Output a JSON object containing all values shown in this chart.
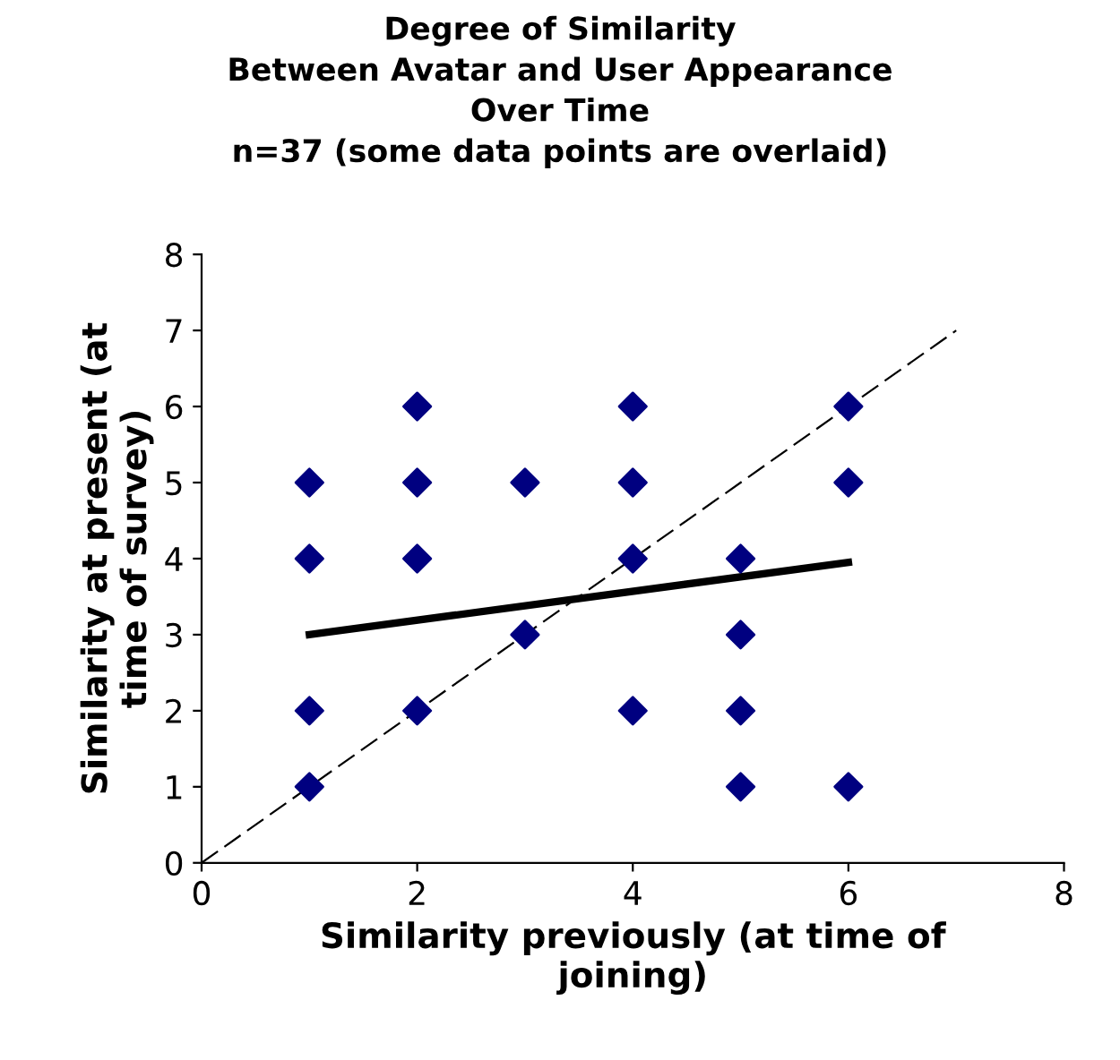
{
  "chart_data": {
    "type": "scatter",
    "title": "Degree of Similarity\nBetween Avatar and User Appearance\nOver Time\nn=37 (some data points are overlaid)",
    "xlabel": "Similarity previously (at time of\njoining)",
    "ylabel": "Similarity at present (at\ntime of survey)",
    "series": [
      {
        "color": "#000080",
        "marker": "diamond",
        "x": [
          1,
          1,
          1,
          1,
          2,
          2,
          2,
          2,
          3,
          3,
          4,
          4,
          4,
          4,
          5,
          5,
          5,
          5,
          6,
          6,
          6
        ],
        "values": [
          5,
          4,
          2,
          1,
          6,
          5,
          4,
          2,
          5,
          3,
          6,
          5,
          4,
          2,
          4,
          3,
          2,
          1,
          6,
          5,
          1
        ]
      },
      {
        "type": "line",
        "color": "#000000",
        "line_style": "solid",
        "marker": "none",
        "x": [
          1,
          6
        ],
        "values": [
          3,
          3.95
        ]
      },
      {
        "type": "line",
        "color": "#000000",
        "line_style": "dashed",
        "marker": "none",
        "x": [
          0,
          7
        ],
        "values": [
          0,
          7
        ]
      }
    ],
    "xlim": [
      0,
      8
    ],
    "xticks": [
      0,
      2,
      4,
      6,
      8
    ],
    "ylim": [
      0,
      8
    ],
    "yticks": [
      0,
      1,
      2,
      3,
      4,
      5,
      6,
      7,
      8
    ],
    "grid": false,
    "legend": false
  }
}
